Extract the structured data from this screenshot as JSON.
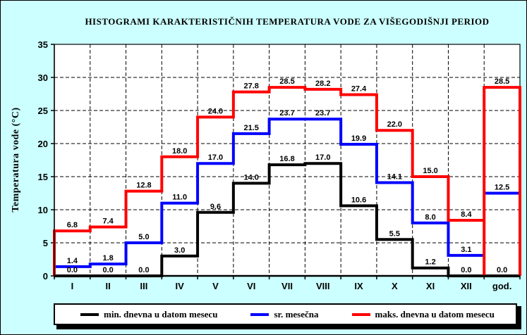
{
  "title": "HISTOGRAMI KARAKTERISTIČNIH TEMPERATURA VODE ZA VIŠEGODIŠNJI PERIOD",
  "y_axis_title": "Temperatura vode (°C)",
  "legend": {
    "min_label": "min. dnevna u datom mesecu",
    "avg_label": "sr. mesečna",
    "max_label": "maks. dnevna u datom mesecu"
  },
  "colors": {
    "background": "#ccffff",
    "plot_background": "#ffffff",
    "grid": "#000000",
    "min_series": "#000000",
    "avg_series": "#0000ff",
    "max_series": "#ff0000"
  },
  "chart_data": {
    "type": "line",
    "subtype": "step-histogram",
    "categories": [
      "I",
      "II",
      "III",
      "IV",
      "V",
      "VI",
      "VII",
      "VIII",
      "IX",
      "X",
      "XI",
      "XII",
      "god."
    ],
    "series": [
      {
        "name": "min. dnevna u datom mesecu",
        "color": "#000000",
        "god_box": false,
        "values": [
          0.0,
          0.0,
          0.0,
          3.0,
          9.6,
          14.0,
          16.8,
          17.0,
          10.6,
          5.5,
          1.2,
          0.0,
          0.0
        ]
      },
      {
        "name": "sr. mesečna",
        "color": "#0000ff",
        "god_box": false,
        "values": [
          1.4,
          1.8,
          5.0,
          11.0,
          17.0,
          21.5,
          23.7,
          23.7,
          19.9,
          14.1,
          8.0,
          3.1,
          12.5
        ]
      },
      {
        "name": "maks. dnevna u datom mesecu",
        "color": "#ff0000",
        "god_box": true,
        "values": [
          6.8,
          7.4,
          12.8,
          18.0,
          24.0,
          27.8,
          28.5,
          28.2,
          27.4,
          22.0,
          15.0,
          8.4,
          28.5
        ]
      }
    ],
    "title": "HISTOGRAMI KARAKTERISTIČNIH TEMPERATURA VODE ZA VIŠEGODIŠNJI PERIOD",
    "xlabel": "",
    "ylabel": "Temperatura vode (°C)",
    "ylim": [
      0,
      35
    ],
    "ytick_step": 5,
    "grid": true,
    "grid_style": "dashed",
    "legend_position": "bottom"
  }
}
